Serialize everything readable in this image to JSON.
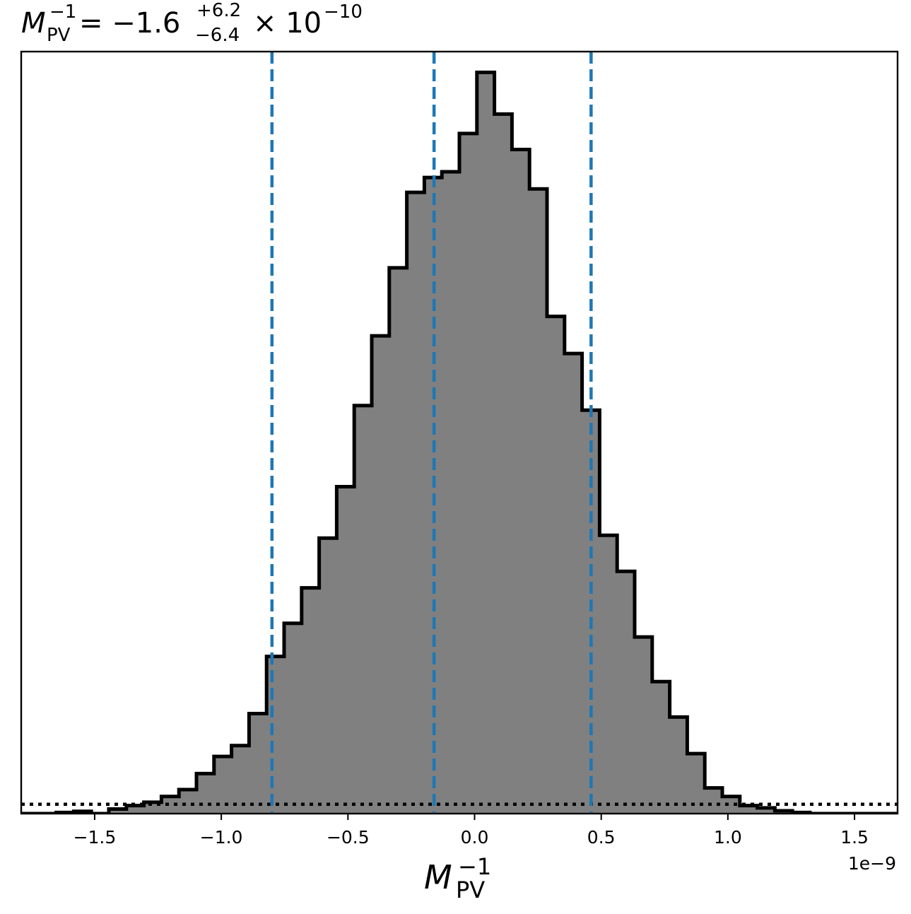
{
  "chart_data": {
    "type": "histogram",
    "title": {
      "symbol": "M",
      "subscript": "PV",
      "superscript": "−1",
      "equals": " = −1.6",
      "err_plus": "+6.2",
      "err_minus": "−6.4",
      "times": "× 10",
      "exponent": "−10"
    },
    "xlabel": {
      "symbol": "M",
      "subscript": "PV",
      "superscript": "−1"
    },
    "x_offset_label": "1e−9",
    "xlim": [
      -1.79,
      1.67
    ],
    "ylim": [
      0,
      1.06
    ],
    "xticks": [
      {
        "value": -1.5,
        "label": "−1.5"
      },
      {
        "value": -1.0,
        "label": "−1.0"
      },
      {
        "value": -0.5,
        "label": "−0.5"
      },
      {
        "value": 0.0,
        "label": "0.0"
      },
      {
        "value": 0.5,
        "label": "0.5"
      },
      {
        "value": 1.0,
        "label": "1.0"
      },
      {
        "value": 1.5,
        "label": "1.5"
      }
    ],
    "bin_start": -1.79,
    "bin_width": 0.0692,
    "bin_heights": [
      0.0,
      0.0,
      0.002,
      0.004,
      0.0,
      0.008,
      0.014,
      0.02,
      0.03,
      0.042,
      0.07,
      0.1,
      0.119,
      0.175,
      0.275,
      0.333,
      0.395,
      0.482,
      0.572,
      0.714,
      0.836,
      0.955,
      1.087,
      1.113,
      1.123,
      1.19,
      1.297,
      1.224,
      1.162,
      1.093,
      0.87,
      0.805,
      0.706,
      0.487,
      0.424,
      0.309,
      0.231,
      0.169,
      0.105,
      0.045,
      0.03,
      0.014,
      0.01,
      0.005,
      0.002,
      0.0,
      0.0,
      0.0,
      0.0,
      0.0
    ],
    "height_scale": 0.795,
    "quantile_lines": {
      "values": [
        -0.8,
        -0.16,
        0.46
      ],
      "color": "#1f77b4",
      "style": "dashed"
    },
    "prior_line": {
      "value": 0.013,
      "color": "#000000",
      "style": "dotted"
    },
    "fill_color": "#808080",
    "edge_color": "#000000"
  }
}
